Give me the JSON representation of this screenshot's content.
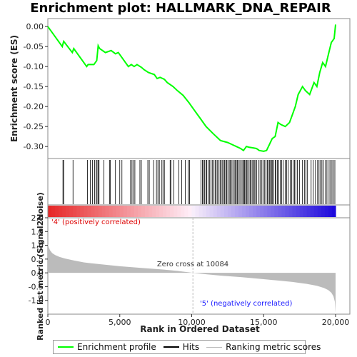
{
  "chart_data": {
    "type": "line",
    "title": "Enrichment plot: HALLMARK_DNA_REPAIR",
    "top_panel": {
      "ylabel": "Enrichment score (ES)",
      "ylim": [
        -0.33,
        0.02
      ],
      "yticks": [
        0.0,
        -0.05,
        -0.1,
        -0.15,
        -0.2,
        -0.25,
        -0.3
      ],
      "ytick_labels": [
        "0.00",
        "-0.05",
        "-0.10",
        "-0.15",
        "-0.20",
        "-0.25",
        "-0.30"
      ],
      "series": [
        {
          "name": "Enrichment profile",
          "color": "#00ff00",
          "x": [
            0,
            1000,
            1100,
            1700,
            1800,
            2700,
            2800,
            3200,
            3400,
            3500,
            3600,
            4000,
            4400,
            4700,
            4900,
            5600,
            5800,
            6000,
            6200,
            6500,
            6700,
            7000,
            7400,
            7600,
            7800,
            8100,
            8300,
            8700,
            9000,
            9400,
            9800,
            10200,
            10600,
            11000,
            11500,
            12000,
            12500,
            12800,
            13100,
            13400,
            13600,
            13800,
            14000,
            14200,
            14500,
            14700,
            15000,
            15200,
            15400,
            15600,
            15800,
            16000,
            16200,
            16500,
            16800,
            17000,
            17200,
            17400,
            17700,
            17900,
            18200,
            18500,
            18700,
            18900,
            19100,
            19300,
            19500,
            19700,
            19900,
            20000
          ],
          "y": [
            0.0,
            -0.05,
            -0.037,
            -0.065,
            -0.055,
            -0.1,
            -0.095,
            -0.095,
            -0.085,
            -0.048,
            -0.055,
            -0.065,
            -0.06,
            -0.068,
            -0.065,
            -0.1,
            -0.095,
            -0.1,
            -0.095,
            -0.102,
            -0.108,
            -0.115,
            -0.12,
            -0.13,
            -0.127,
            -0.132,
            -0.14,
            -0.15,
            -0.16,
            -0.172,
            -0.19,
            -0.21,
            -0.23,
            -0.25,
            -0.268,
            -0.285,
            -0.29,
            -0.295,
            -0.3,
            -0.305,
            -0.31,
            -0.3,
            -0.302,
            -0.303,
            -0.305,
            -0.31,
            -0.312,
            -0.31,
            -0.295,
            -0.28,
            -0.275,
            -0.24,
            -0.245,
            -0.25,
            -0.24,
            -0.22,
            -0.2,
            -0.17,
            -0.15,
            -0.16,
            -0.17,
            -0.14,
            -0.15,
            -0.115,
            -0.09,
            -0.1,
            -0.07,
            -0.04,
            -0.03,
            0.005
          ]
        }
      ]
    },
    "hits_panel": {
      "series_name": "Hits",
      "hits": [
        1050,
        1100,
        1750,
        2750,
        2950,
        3100,
        3250,
        3350,
        3420,
        3500,
        3560,
        3900,
        4300,
        4350,
        4700,
        5000,
        5150,
        5750,
        5850,
        5950,
        6050,
        6400,
        6500,
        6950,
        7050,
        7350,
        7550,
        7650,
        7750,
        7900,
        8000,
        8100,
        8500,
        8550,
        8750,
        9100,
        9300,
        9550,
        9750,
        9850,
        10650,
        10750,
        10800,
        10900,
        11000,
        11050,
        11150,
        11250,
        11350,
        11450,
        11550,
        11650,
        11700,
        11800,
        11900,
        12000,
        12050,
        12150,
        12250,
        12300,
        12400,
        12450,
        12550,
        12650,
        12700,
        12800,
        12900,
        13000,
        13050,
        13150,
        13200,
        13300,
        13400,
        13500,
        13600,
        13650,
        13700,
        13800,
        13850,
        13950,
        14050,
        14100,
        14200,
        14300,
        14350,
        14450,
        14500,
        14650,
        14750,
        14850,
        14950,
        15050,
        15150,
        15250,
        15300,
        15400,
        15450,
        15550,
        15600,
        15700,
        15800,
        15850,
        15950,
        16050,
        16150,
        16250,
        16350,
        16500,
        16600,
        16700,
        16850,
        16950,
        17050,
        17150,
        17250,
        17350,
        17500,
        17700,
        17850,
        17950,
        18050,
        18300,
        18450,
        18600,
        18750,
        18850,
        18950,
        19050,
        19150,
        19300,
        19400,
        19550,
        19650,
        19750,
        19850,
        19950
      ]
    },
    "rank_panel": {
      "ylabel": "Ranked list metric (Signal2Noise)",
      "xlabel": "Rank in Ordered Dataset",
      "series_name": "Ranking metric scores",
      "color": "#bbbbbb",
      "ylim": [
        -1.5,
        2.0
      ],
      "xlim": [
        0,
        20000
      ],
      "yticks": [
        2.0,
        1.5,
        1.0,
        0.5,
        0.0,
        -0.5,
        -1.0
      ],
      "ytick_labels": [
        "2.0",
        "1.5",
        "1.0",
        "0.5",
        "0.0",
        "-0.5",
        "-1.0"
      ],
      "xticks": [
        0,
        5000,
        10000,
        15000,
        20000
      ],
      "xtick_labels": [
        "0",
        "5,000",
        "10,000",
        "15,000",
        "20,000"
      ],
      "x": [
        0,
        50,
        150,
        300,
        500,
        800,
        1200,
        1800,
        2500,
        3500,
        5000,
        6500,
        8000,
        9000,
        10084,
        11000,
        12000,
        13500,
        15000,
        16000,
        17000,
        18000,
        18700,
        19200,
        19500,
        19700,
        19850,
        19950,
        20000
      ],
      "y": [
        1.05,
        0.95,
        0.82,
        0.72,
        0.65,
        0.58,
        0.52,
        0.45,
        0.38,
        0.32,
        0.24,
        0.18,
        0.12,
        0.07,
        0.0,
        -0.05,
        -0.1,
        -0.16,
        -0.23,
        -0.28,
        -0.33,
        -0.4,
        -0.47,
        -0.55,
        -0.63,
        -0.72,
        -0.85,
        -1.05,
        -1.45
      ]
    },
    "annotations": {
      "zero_cross": "Zero cross at 10084",
      "positive": "'4' (positively correlated)",
      "negative": "'5' (negatively correlated)"
    }
  },
  "legend": {
    "enrichment": "Enrichment profile",
    "hits": "Hits",
    "ranking": "Ranking metric scores"
  }
}
